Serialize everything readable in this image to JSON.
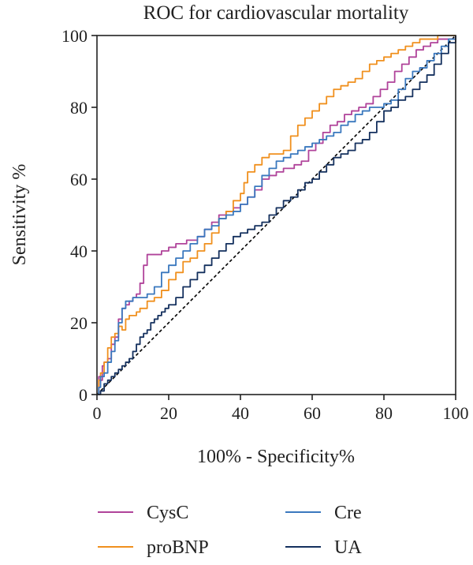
{
  "chart_data": {
    "type": "line",
    "title": "ROC for cardiovascular mortality",
    "xlabel": "100% - Specificity%",
    "ylabel": "Sensitivity %",
    "xlim": [
      0,
      100
    ],
    "ylim": [
      0,
      100
    ],
    "x_ticks": [
      0,
      20,
      40,
      60,
      80,
      100
    ],
    "y_ticks": [
      0,
      20,
      40,
      60,
      80,
      100
    ],
    "grid": false,
    "legend_position": "bottom",
    "reference_line": {
      "style": "dashed",
      "color": "#000000",
      "points": [
        [
          0,
          0
        ],
        [
          100,
          100
        ]
      ]
    },
    "series": [
      {
        "name": "CysC",
        "color": "#b0439a",
        "points": [
          [
            0,
            0
          ],
          [
            0.5,
            5
          ],
          [
            1,
            4
          ],
          [
            1.5,
            8
          ],
          [
            2,
            9
          ],
          [
            3,
            10
          ],
          [
            4,
            14
          ],
          [
            5,
            16
          ],
          [
            6,
            21
          ],
          [
            7,
            24
          ],
          [
            8,
            25
          ],
          [
            9,
            26
          ],
          [
            10,
            27
          ],
          [
            11,
            28
          ],
          [
            12,
            31
          ],
          [
            13,
            36
          ],
          [
            14,
            39
          ],
          [
            16,
            39
          ],
          [
            18,
            40
          ],
          [
            20,
            41
          ],
          [
            22,
            42
          ],
          [
            25,
            43
          ],
          [
            28,
            44
          ],
          [
            30,
            46
          ],
          [
            32,
            48
          ],
          [
            34,
            50
          ],
          [
            36,
            51
          ],
          [
            38,
            52
          ],
          [
            40,
            53
          ],
          [
            42,
            55
          ],
          [
            44,
            57
          ],
          [
            46,
            60
          ],
          [
            48,
            61
          ],
          [
            50,
            62
          ],
          [
            52,
            63
          ],
          [
            55,
            64
          ],
          [
            57,
            65
          ],
          [
            59,
            68
          ],
          [
            61,
            70
          ],
          [
            63,
            73
          ],
          [
            65,
            75
          ],
          [
            67,
            76
          ],
          [
            69,
            78
          ],
          [
            71,
            79
          ],
          [
            73,
            80
          ],
          [
            75,
            81
          ],
          [
            77,
            83
          ],
          [
            79,
            85
          ],
          [
            81,
            87
          ],
          [
            83,
            90
          ],
          [
            85,
            92
          ],
          [
            87,
            94
          ],
          [
            89,
            96
          ],
          [
            91,
            97
          ],
          [
            93,
            98
          ],
          [
            95,
            99
          ],
          [
            97,
            99
          ],
          [
            100,
            100
          ]
        ]
      },
      {
        "name": "proBNP",
        "color": "#f0901e",
        "points": [
          [
            0,
            0
          ],
          [
            0.5,
            4
          ],
          [
            1,
            6
          ],
          [
            2,
            9
          ],
          [
            3,
            13
          ],
          [
            4,
            16
          ],
          [
            5,
            17
          ],
          [
            6,
            19
          ],
          [
            7,
            18
          ],
          [
            8,
            21
          ],
          [
            9,
            22
          ],
          [
            10,
            22
          ],
          [
            11,
            23
          ],
          [
            12,
            24
          ],
          [
            14,
            26
          ],
          [
            16,
            27
          ],
          [
            18,
            29
          ],
          [
            20,
            32
          ],
          [
            22,
            34
          ],
          [
            24,
            37
          ],
          [
            26,
            38
          ],
          [
            28,
            40
          ],
          [
            30,
            42
          ],
          [
            32,
            45
          ],
          [
            34,
            49
          ],
          [
            36,
            51
          ],
          [
            38,
            54
          ],
          [
            40,
            56
          ],
          [
            41,
            59
          ],
          [
            42,
            62
          ],
          [
            44,
            64
          ],
          [
            46,
            66
          ],
          [
            48,
            67
          ],
          [
            50,
            67
          ],
          [
            52,
            68
          ],
          [
            54,
            72
          ],
          [
            56,
            75
          ],
          [
            58,
            77
          ],
          [
            60,
            79
          ],
          [
            62,
            81
          ],
          [
            64,
            83
          ],
          [
            66,
            85
          ],
          [
            68,
            86
          ],
          [
            70,
            87
          ],
          [
            72,
            88
          ],
          [
            74,
            90
          ],
          [
            76,
            92
          ],
          [
            78,
            93
          ],
          [
            80,
            94
          ],
          [
            82,
            95
          ],
          [
            84,
            96
          ],
          [
            86,
            97
          ],
          [
            88,
            98
          ],
          [
            90,
            99
          ],
          [
            92,
            99
          ],
          [
            95,
            100
          ],
          [
            100,
            100
          ]
        ]
      },
      {
        "name": "Cre",
        "color": "#3a78be",
        "points": [
          [
            0,
            0
          ],
          [
            0.5,
            2
          ],
          [
            1,
            5
          ],
          [
            2,
            6
          ],
          [
            3,
            9
          ],
          [
            4,
            12
          ],
          [
            5,
            15
          ],
          [
            6,
            20
          ],
          [
            7,
            24
          ],
          [
            8,
            26
          ],
          [
            10,
            27
          ],
          [
            12,
            27
          ],
          [
            14,
            28
          ],
          [
            16,
            30
          ],
          [
            18,
            34
          ],
          [
            20,
            36
          ],
          [
            22,
            38
          ],
          [
            24,
            40
          ],
          [
            26,
            42
          ],
          [
            28,
            44
          ],
          [
            30,
            46
          ],
          [
            32,
            47
          ],
          [
            34,
            49
          ],
          [
            36,
            50
          ],
          [
            38,
            51
          ],
          [
            40,
            53
          ],
          [
            42,
            55
          ],
          [
            44,
            58
          ],
          [
            46,
            61
          ],
          [
            48,
            63
          ],
          [
            50,
            65
          ],
          [
            52,
            66
          ],
          [
            54,
            67
          ],
          [
            56,
            68
          ],
          [
            58,
            69
          ],
          [
            60,
            70
          ],
          [
            62,
            71
          ],
          [
            64,
            72
          ],
          [
            66,
            73
          ],
          [
            68,
            75
          ],
          [
            70,
            76
          ],
          [
            72,
            78
          ],
          [
            74,
            79
          ],
          [
            76,
            80
          ],
          [
            78,
            80
          ],
          [
            80,
            81
          ],
          [
            82,
            82
          ],
          [
            84,
            85
          ],
          [
            86,
            88
          ],
          [
            88,
            90
          ],
          [
            90,
            91
          ],
          [
            92,
            93
          ],
          [
            94,
            95
          ],
          [
            96,
            97
          ],
          [
            98,
            99
          ],
          [
            100,
            100
          ]
        ]
      },
      {
        "name": "UA",
        "color": "#14305e",
        "points": [
          [
            0,
            0
          ],
          [
            1,
            1
          ],
          [
            2,
            3
          ],
          [
            3,
            4
          ],
          [
            4,
            5
          ],
          [
            5,
            6
          ],
          [
            6,
            7
          ],
          [
            7,
            8
          ],
          [
            8,
            9
          ],
          [
            9,
            10
          ],
          [
            10,
            12
          ],
          [
            11,
            14
          ],
          [
            12,
            16
          ],
          [
            13,
            17
          ],
          [
            14,
            18
          ],
          [
            15,
            20
          ],
          [
            16,
            21
          ],
          [
            17,
            22
          ],
          [
            18,
            23
          ],
          [
            19,
            24
          ],
          [
            20,
            25
          ],
          [
            22,
            27
          ],
          [
            24,
            30
          ],
          [
            26,
            32
          ],
          [
            28,
            34
          ],
          [
            30,
            36
          ],
          [
            32,
            38
          ],
          [
            34,
            40
          ],
          [
            36,
            42
          ],
          [
            38,
            44
          ],
          [
            40,
            45
          ],
          [
            42,
            46
          ],
          [
            44,
            47
          ],
          [
            46,
            48
          ],
          [
            48,
            50
          ],
          [
            50,
            52
          ],
          [
            52,
            54
          ],
          [
            54,
            55
          ],
          [
            56,
            57
          ],
          [
            58,
            59
          ],
          [
            60,
            60
          ],
          [
            62,
            62
          ],
          [
            64,
            64
          ],
          [
            66,
            66
          ],
          [
            68,
            67
          ],
          [
            70,
            68
          ],
          [
            72,
            70
          ],
          [
            74,
            71
          ],
          [
            76,
            73
          ],
          [
            78,
            76
          ],
          [
            80,
            79
          ],
          [
            82,
            80
          ],
          [
            84,
            82
          ],
          [
            86,
            83
          ],
          [
            88,
            85
          ],
          [
            90,
            87
          ],
          [
            92,
            89
          ],
          [
            94,
            92
          ],
          [
            96,
            95
          ],
          [
            98,
            98
          ],
          [
            100,
            100
          ]
        ]
      }
    ]
  }
}
